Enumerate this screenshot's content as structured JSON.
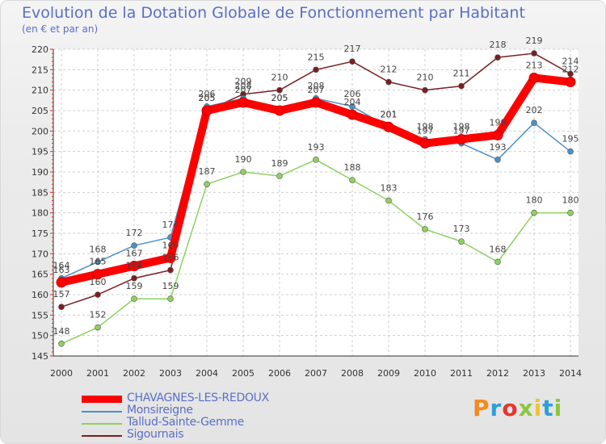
{
  "header": {
    "title": "Evolution de la Dotation Globale de Fonctionnement par Habitant",
    "subtitle": "(en € et par an)"
  },
  "logo": {
    "text": "Proxiti",
    "colors": [
      "#f28c1e",
      "#2e9fd8",
      "#e8342f",
      "#8cc63f",
      "#f2c230",
      "#2e9fd8",
      "#8cc63f"
    ]
  },
  "chart_data": {
    "type": "line",
    "title": "Evolution de la Dotation Globale de Fonctionnement par Habitant",
    "subtitle": "(en € et par an)",
    "xlabel": "",
    "ylabel": "",
    "ylim": [
      145,
      220
    ],
    "yticks": [
      145,
      150,
      155,
      160,
      165,
      170,
      175,
      180,
      185,
      190,
      195,
      200,
      205,
      210,
      215,
      220
    ],
    "x": [
      "2000",
      "2001",
      "2002",
      "2003",
      "2004",
      "2005",
      "2006",
      "2007",
      "2008",
      "2009",
      "2010",
      "2011",
      "2012",
      "2013",
      "2014"
    ],
    "legend_position": "bottom-left",
    "series": [
      {
        "name": "Sigournais",
        "color": "#7a1e22",
        "values": [
          157,
          160,
          164,
          166,
          205,
          209,
          210,
          215,
          217,
          212,
          210,
          211,
          218,
          219,
          214
        ]
      },
      {
        "name": "Tallud-Sainte-Gemme",
        "color": "#8ed060",
        "values": [
          148,
          152,
          159,
          159,
          187,
          190,
          189,
          193,
          188,
          183,
          176,
          173,
          168,
          180,
          180
        ]
      },
      {
        "name": "Monsireigne",
        "color": "#4a90c8",
        "values": [
          164,
          168,
          172,
          174,
          206,
          208,
          205,
          208,
          206,
          201,
          198,
          197,
          193,
          202,
          195
        ]
      },
      {
        "name": "CHAVAGNES-LES-REDOUX",
        "color": "#ff0000",
        "values": [
          163,
          165,
          167,
          169,
          205,
          207,
          205,
          207,
          204,
          201,
          197,
          198,
          199,
          213,
          212
        ]
      }
    ],
    "legend_order": [
      "CHAVAGNES-LES-REDOUX",
      "Monsireigne",
      "Tallud-Sainte-Gemme",
      "Sigournais"
    ]
  }
}
